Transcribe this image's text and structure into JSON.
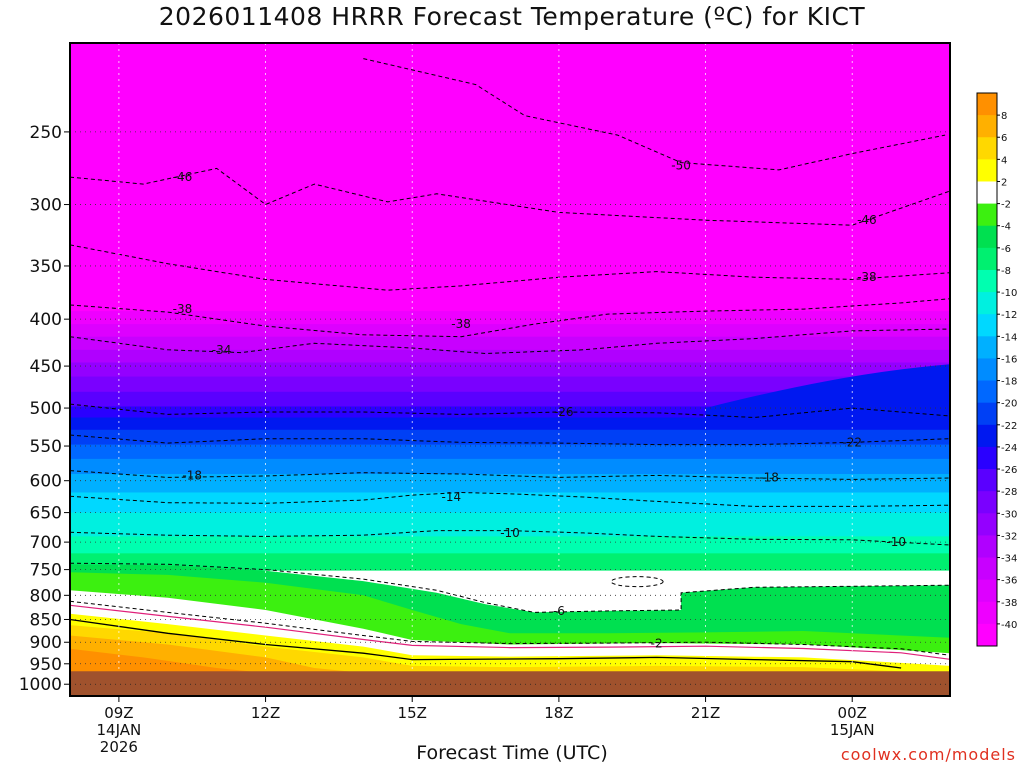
{
  "title": "2026011408 HRRR Forecast Temperature (ºC) for KICT",
  "xlabel": "Forecast Time (UTC)",
  "credit": "coolwx.com/models",
  "chart_data": {
    "type": "heatmap",
    "title": "2026011408 HRRR Forecast Temperature (ºC) for KICT",
    "xlabel": "Forecast Time (UTC)",
    "ylabel": "",
    "x_ticks": [
      {
        "hour": 9,
        "lines": [
          "09Z",
          "14JAN",
          "2026"
        ]
      },
      {
        "hour": 12,
        "lines": [
          "12Z"
        ]
      },
      {
        "hour": 15,
        "lines": [
          "15Z"
        ]
      },
      {
        "hour": 18,
        "lines": [
          "18Z"
        ]
      },
      {
        "hour": 21,
        "lines": [
          "21Z"
        ]
      },
      {
        "hour": 24,
        "lines": [
          "00Z",
          "15JAN"
        ]
      }
    ],
    "xlim": [
      8,
      26
    ],
    "y_ticks": [
      250,
      300,
      350,
      400,
      450,
      500,
      550,
      600,
      650,
      700,
      750,
      800,
      850,
      900,
      950,
      1000
    ],
    "ylim": [
      200,
      1030
    ],
    "yscale": "log",
    "colorbar": {
      "levels": [
        -40,
        -38,
        -36,
        -34,
        -32,
        -30,
        -28,
        -26,
        -24,
        -22,
        -20,
        -18,
        -16,
        -14,
        -12,
        -10,
        -8,
        -6,
        -4,
        -2,
        2,
        4,
        6,
        8
      ],
      "labels": [
        "-40",
        "-38",
        "-36",
        "-34",
        "-32",
        "-30",
        "-28",
        "-26",
        "-24",
        "-22",
        "-20",
        "-18",
        "-16",
        "-14",
        "-12",
        "-10",
        "-8",
        "-6",
        "-4",
        "-2",
        "2",
        "4",
        "6",
        "8"
      ],
      "colors": [
        "#ff00ff",
        "#ee00ff",
        "#dd00ff",
        "#c800ff",
        "#b000ff",
        "#9400ff",
        "#7a00ff",
        "#5a00ff",
        "#2a00ff",
        "#0018f0",
        "#0040f5",
        "#0068ff",
        "#008cff",
        "#00b0ff",
        "#00d8ff",
        "#00f0e0",
        "#00ffb0",
        "#00f070",
        "#00e050",
        "#3cf010",
        "#ffffff",
        "#ffff00",
        "#ffd800",
        "#ffb000",
        "#ff9000"
      ]
    },
    "contours": [
      {
        "label": "-50",
        "pts": [
          [
            14,
            208
          ],
          [
            16.3,
            222
          ],
          [
            17.3,
            240
          ],
          [
            19.2,
            252
          ],
          [
            20.5,
            270
          ],
          [
            22.5,
            275
          ],
          [
            24,
            264
          ],
          [
            25.9,
            252
          ]
        ]
      },
      {
        "label": "-46",
        "pts": [
          [
            8,
            280
          ],
          [
            9.5,
            285
          ],
          [
            11,
            274
          ],
          [
            12,
            300
          ],
          [
            13,
            285
          ],
          [
            14.5,
            298
          ],
          [
            15.5,
            292
          ],
          [
            18,
            306
          ],
          [
            21,
            312
          ],
          [
            24,
            316
          ],
          [
            26,
            290
          ]
        ]
      },
      {
        "label": "-38",
        "pts": [
          [
            8,
            332
          ],
          [
            10,
            348
          ],
          [
            12,
            362
          ],
          [
            14.5,
            372
          ],
          [
            16,
            368
          ],
          [
            18,
            360
          ],
          [
            20,
            355
          ],
          [
            22,
            360
          ],
          [
            24,
            362
          ],
          [
            26,
            356
          ]
        ]
      },
      {
        "label": "-38",
        "pts": [
          [
            8,
            386
          ],
          [
            10,
            393
          ],
          [
            12,
            407
          ],
          [
            14,
            416
          ],
          [
            16,
            418
          ],
          [
            17.5,
            405
          ],
          [
            19,
            395
          ],
          [
            21,
            392
          ],
          [
            23,
            390
          ],
          [
            25,
            384
          ],
          [
            26,
            380
          ]
        ]
      },
      {
        "label": "-34",
        "pts": [
          [
            8,
            418
          ],
          [
            10,
            432
          ],
          [
            11.5,
            435
          ],
          [
            13,
            425
          ],
          [
            15,
            430
          ],
          [
            16.5,
            436
          ],
          [
            18.5,
            432
          ],
          [
            20,
            425
          ],
          [
            22,
            420
          ],
          [
            24,
            412
          ],
          [
            26,
            410
          ]
        ]
      },
      {
        "label": "-26",
        "pts": [
          [
            8,
            495
          ],
          [
            10,
            508
          ],
          [
            12,
            505
          ],
          [
            14,
            505
          ],
          [
            16,
            508
          ],
          [
            18,
            505
          ],
          [
            20,
            506
          ],
          [
            22,
            512
          ],
          [
            24,
            500
          ],
          [
            26,
            510
          ]
        ]
      },
      {
        "label": "-22",
        "pts": [
          [
            8,
            535
          ],
          [
            10,
            546
          ],
          [
            12,
            540
          ],
          [
            14,
            540
          ],
          [
            16,
            545
          ],
          [
            18,
            546
          ],
          [
            20,
            548
          ],
          [
            22,
            548
          ],
          [
            24,
            545
          ],
          [
            26,
            540
          ]
        ]
      },
      {
        "label": "-18",
        "pts": [
          [
            8,
            585
          ],
          [
            10,
            595
          ],
          [
            12,
            593
          ],
          [
            14,
            588
          ],
          [
            16,
            590
          ],
          [
            18,
            595
          ],
          [
            20,
            592
          ],
          [
            22,
            596
          ],
          [
            24,
            598
          ],
          [
            26,
            596
          ]
        ]
      },
      {
        "label": "-14",
        "pts": [
          [
            8,
            624
          ],
          [
            10,
            634
          ],
          [
            12,
            635
          ],
          [
            14,
            630
          ],
          [
            15,
            622
          ],
          [
            16,
            618
          ],
          [
            17,
            620
          ],
          [
            18.5,
            625
          ],
          [
            20,
            632
          ],
          [
            22,
            640
          ],
          [
            24,
            640
          ],
          [
            26,
            638
          ]
        ]
      },
      {
        "label": "-10",
        "pts": [
          [
            8,
            683
          ],
          [
            10,
            688
          ],
          [
            12,
            690
          ],
          [
            14,
            688
          ],
          [
            15.5,
            680
          ],
          [
            17,
            680
          ],
          [
            18.5,
            684
          ],
          [
            20,
            690
          ],
          [
            22,
            695
          ],
          [
            24,
            696
          ],
          [
            26,
            705
          ]
        ]
      },
      {
        "label": "-6",
        "pts": [
          [
            8,
            738
          ],
          [
            10,
            740
          ],
          [
            12,
            750
          ],
          [
            14,
            768
          ],
          [
            15.5,
            790
          ],
          [
            16.5,
            815
          ],
          [
            17.5,
            835
          ],
          [
            19,
            832
          ],
          [
            20.5,
            830
          ],
          [
            20.5,
            795
          ],
          [
            22,
            784
          ],
          [
            24,
            782
          ],
          [
            26,
            780
          ]
        ]
      },
      {
        "label": "-2",
        "pts": [
          [
            8,
            812
          ],
          [
            10,
            835
          ],
          [
            12,
            858
          ],
          [
            14,
            885
          ],
          [
            15,
            898
          ],
          [
            17,
            903
          ],
          [
            19,
            902
          ],
          [
            21,
            900
          ],
          [
            23,
            905
          ],
          [
            25,
            915
          ],
          [
            26,
            930
          ]
        ]
      }
    ],
    "zero_isotherm": [
      [
        8,
        850
      ],
      [
        10,
        880
      ],
      [
        12,
        905
      ],
      [
        14,
        925
      ],
      [
        15,
        940
      ],
      [
        18,
        938
      ],
      [
        20,
        935
      ],
      [
        22,
        940
      ],
      [
        24,
        945
      ],
      [
        25,
        960
      ]
    ],
    "bands": [
      {
        "color": "#ff9000",
        "top": [
          [
            8,
            915
          ],
          [
            9.5,
            935
          ],
          [
            11,
            960
          ],
          [
            12,
            972
          ],
          [
            12,
            1030
          ],
          [
            8,
            1030
          ]
        ]
      },
      {
        "color": "#ffb000",
        "top": [
          [
            8,
            885
          ],
          [
            10,
            905
          ],
          [
            12,
            935
          ],
          [
            13,
            960
          ],
          [
            14,
            972
          ],
          [
            14,
            1030
          ],
          [
            8,
            1030
          ]
        ]
      },
      {
        "color": "#ffd800",
        "top": [
          [
            8,
            862
          ],
          [
            10,
            880
          ],
          [
            12,
            910
          ],
          [
            14,
            935
          ],
          [
            15,
            955
          ],
          [
            17,
            958
          ],
          [
            20,
            955
          ],
          [
            23,
            958
          ],
          [
            25,
            968
          ],
          [
            26,
            972
          ],
          [
            26,
            1030
          ],
          [
            8,
            1030
          ]
        ]
      },
      {
        "color": "#ffff00",
        "top": [
          [
            8,
            838
          ],
          [
            10,
            860
          ],
          [
            12,
            885
          ],
          [
            14,
            910
          ],
          [
            15,
            930
          ],
          [
            17,
            933
          ],
          [
            20,
            930
          ],
          [
            23,
            935
          ],
          [
            25,
            948
          ],
          [
            26,
            955
          ],
          [
            26,
            1030
          ],
          [
            8,
            1030
          ]
        ]
      },
      {
        "color": "#ffffff",
        "top": [
          [
            8,
            790
          ],
          [
            10,
            805
          ],
          [
            12,
            830
          ],
          [
            14,
            870
          ],
          [
            15,
            895
          ],
          [
            17,
            905
          ],
          [
            20,
            902
          ],
          [
            23,
            905
          ],
          [
            25,
            918
          ],
          [
            26,
            925
          ],
          [
            26,
            1030
          ],
          [
            8,
            1030
          ]
        ]
      },
      {
        "color": "#3cf010",
        "top": [
          [
            8,
            755
          ],
          [
            10,
            760
          ],
          [
            12,
            775
          ],
          [
            14,
            800
          ],
          [
            15,
            830
          ],
          [
            16,
            860
          ],
          [
            17,
            880
          ],
          [
            19,
            880
          ],
          [
            21,
            878
          ],
          [
            23,
            875
          ],
          [
            24,
            880
          ],
          [
            26,
            890
          ],
          [
            26,
            1030
          ],
          [
            8,
            1030
          ]
        ]
      },
      {
        "color": "#00e050",
        "top": [
          [
            8,
            740
          ],
          [
            10,
            742
          ],
          [
            12,
            752
          ],
          [
            14,
            772
          ],
          [
            15.5,
            795
          ],
          [
            16.5,
            818
          ],
          [
            17.5,
            835
          ],
          [
            19,
            832
          ],
          [
            20.5,
            830
          ],
          [
            20.5,
            795
          ],
          [
            22,
            784
          ],
          [
            24,
            782
          ],
          [
            26,
            780
          ],
          [
            26,
            1030
          ],
          [
            8,
            1030
          ]
        ]
      }
    ],
    "ground": {
      "color": "#a0522d",
      "pressure": 968
    },
    "frame_color": "#000000",
    "background": "#ffffff"
  }
}
